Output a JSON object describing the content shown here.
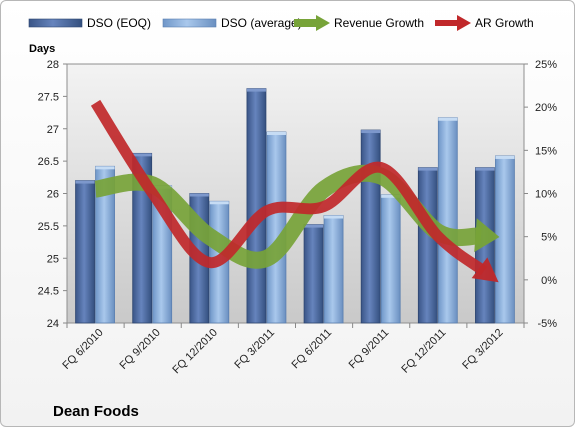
{
  "chart_data": {
    "type": "bar",
    "title": "",
    "company": "Dean Foods",
    "ylabel": "Days",
    "y2label": "",
    "categories": [
      "FQ 6/2010",
      "FQ 9/2010",
      "FQ 12/2010",
      "FQ 3/2011",
      "FQ 6/2011",
      "FQ 9/2011",
      "FQ 12/2011",
      "FQ 3/2012"
    ],
    "ylim": [
      24,
      28
    ],
    "yticks": [
      "24",
      "24.5",
      "25",
      "25.5",
      "26",
      "26.5",
      "27",
      "27.5",
      "28"
    ],
    "y2lim": [
      -5,
      25
    ],
    "y2ticks": [
      "-5%",
      "0%",
      "5%",
      "10%",
      "15%",
      "20%",
      "25%"
    ],
    "series": [
      {
        "name": "DSO (EOQ)",
        "type": "bar",
        "color": "#4f6fa8",
        "values": [
          26.2,
          26.62,
          26.0,
          27.62,
          25.52,
          26.98,
          26.4,
          26.4
        ]
      },
      {
        "name": "DSO (average)",
        "type": "bar",
        "color": "#8fb3dd",
        "values": [
          26.42,
          26.12,
          25.88,
          26.95,
          25.66,
          25.98,
          27.17,
          26.58
        ]
      },
      {
        "name": "Revenue Growth",
        "type": "line",
        "axis": "right",
        "color": "#77a338",
        "values": [
          10.5,
          11,
          5,
          2.5,
          10.5,
          12,
          5.5,
          5
        ]
      },
      {
        "name": "AR Growth",
        "type": "line",
        "axis": "right",
        "color": "#c0282a",
        "values": [
          20.5,
          10,
          2,
          8,
          8.5,
          13,
          5,
          0
        ]
      }
    ],
    "legend_position": "top",
    "grid": false
  }
}
